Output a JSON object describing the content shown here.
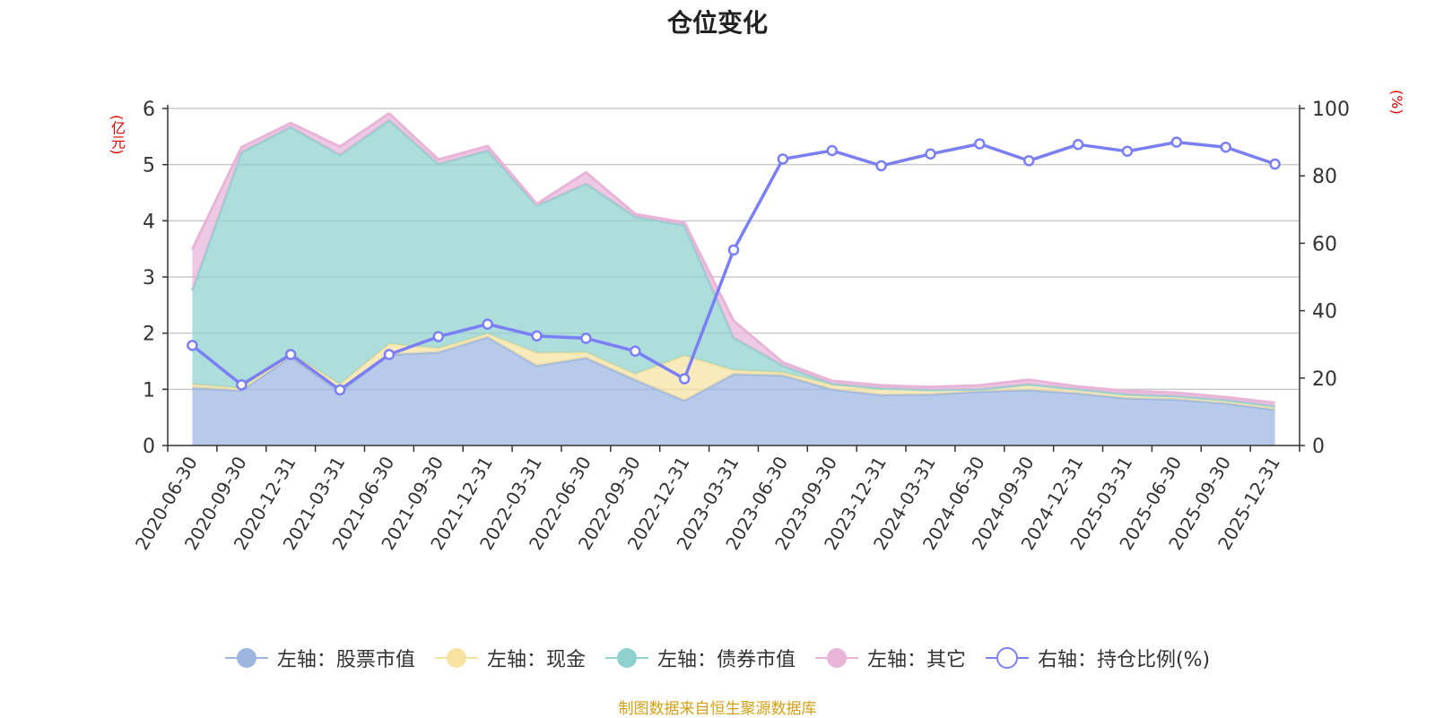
{
  "chart_data": {
    "type": "area",
    "title": "仓位变化",
    "left_axis_unit": "(亿元)",
    "right_axis_unit": "(%)",
    "left_ylim": [
      0,
      6
    ],
    "left_ticks": [
      "0",
      "1",
      "2",
      "3",
      "4",
      "5",
      "6"
    ],
    "right_ylim": [
      0,
      100
    ],
    "right_ticks": [
      "0",
      "20",
      "40",
      "60",
      "80",
      "100"
    ],
    "categories": [
      "2020-06-30",
      "2020-09-30",
      "2020-12-31",
      "2021-03-31",
      "2021-06-30",
      "2021-09-30",
      "2021-12-31",
      "2022-03-31",
      "2022-06-30",
      "2022-09-30",
      "2022-12-31",
      "2023-03-31",
      "2023-06-30",
      "2023-09-30",
      "2023-12-31",
      "2024-03-31",
      "2024-06-30",
      "2024-09-30",
      "2024-12-31",
      "2025-03-31",
      "2025-06-30",
      "2025-09-30",
      "2025-12-31"
    ],
    "stacked_series": [
      {
        "name": "左轴：股票市值",
        "axis": "left",
        "color": "#9db6e0",
        "values": [
          1.03,
          0.98,
          1.58,
          0.95,
          1.62,
          1.66,
          1.93,
          1.42,
          1.56,
          1.17,
          0.8,
          1.27,
          1.25,
          1.0,
          0.9,
          0.91,
          0.96,
          0.99,
          0.93,
          0.84,
          0.82,
          0.75,
          0.64
        ]
      },
      {
        "name": "左轴：现金",
        "axis": "left",
        "color": "#f7e2a1",
        "values": [
          0.06,
          0.04,
          0.06,
          0.14,
          0.19,
          0.07,
          0.06,
          0.23,
          0.1,
          0.1,
          0.8,
          0.07,
          0.05,
          0.08,
          0.12,
          0.08,
          0.04,
          0.1,
          0.07,
          0.07,
          0.06,
          0.06,
          0.06
        ]
      },
      {
        "name": "左轴：债券市值",
        "axis": "left",
        "color": "#8fd1cf",
        "values": [
          1.67,
          4.2,
          4.03,
          4.08,
          3.98,
          3.28,
          3.26,
          2.62,
          3.0,
          2.8,
          2.32,
          0.58,
          0.12,
          0.02,
          0.0,
          0.0,
          0.0,
          0.0,
          0.0,
          0.0,
          0.0,
          0.0,
          0.0
        ]
      },
      {
        "name": "左轴：其它",
        "axis": "left",
        "color": "#e8b4d8",
        "values": [
          0.73,
          0.09,
          0.07,
          0.15,
          0.12,
          0.08,
          0.08,
          0.03,
          0.2,
          0.05,
          0.05,
          0.3,
          0.06,
          0.05,
          0.05,
          0.05,
          0.07,
          0.08,
          0.05,
          0.06,
          0.06,
          0.05,
          0.06
        ]
      }
    ],
    "line_series": {
      "name": "右轴：持仓比例(%)",
      "axis": "right",
      "color": "#7b7ff5",
      "values": [
        29.7,
        18.0,
        27.0,
        16.5,
        27.0,
        32.3,
        36.0,
        32.5,
        31.8,
        28.0,
        19.8,
        58.0,
        85.0,
        87.5,
        83.0,
        86.5,
        89.5,
        84.5,
        89.3,
        87.3,
        90.0,
        88.5,
        83.5
      ]
    }
  },
  "legend": [
    {
      "label": "左轴：股票市值",
      "color": "#9db6e0",
      "kind": "filled"
    },
    {
      "label": "左轴：现金",
      "color": "#f7e2a1",
      "kind": "filled"
    },
    {
      "label": "左轴：债券市值",
      "color": "#8fd1cf",
      "kind": "filled"
    },
    {
      "label": "左轴：其它",
      "color": "#e8b4d8",
      "kind": "filled"
    },
    {
      "label": "右轴：持仓比例(%)",
      "color": "#7b7ff5",
      "kind": "hollow"
    }
  ],
  "source": "制图数据来自恒生聚源数据库"
}
